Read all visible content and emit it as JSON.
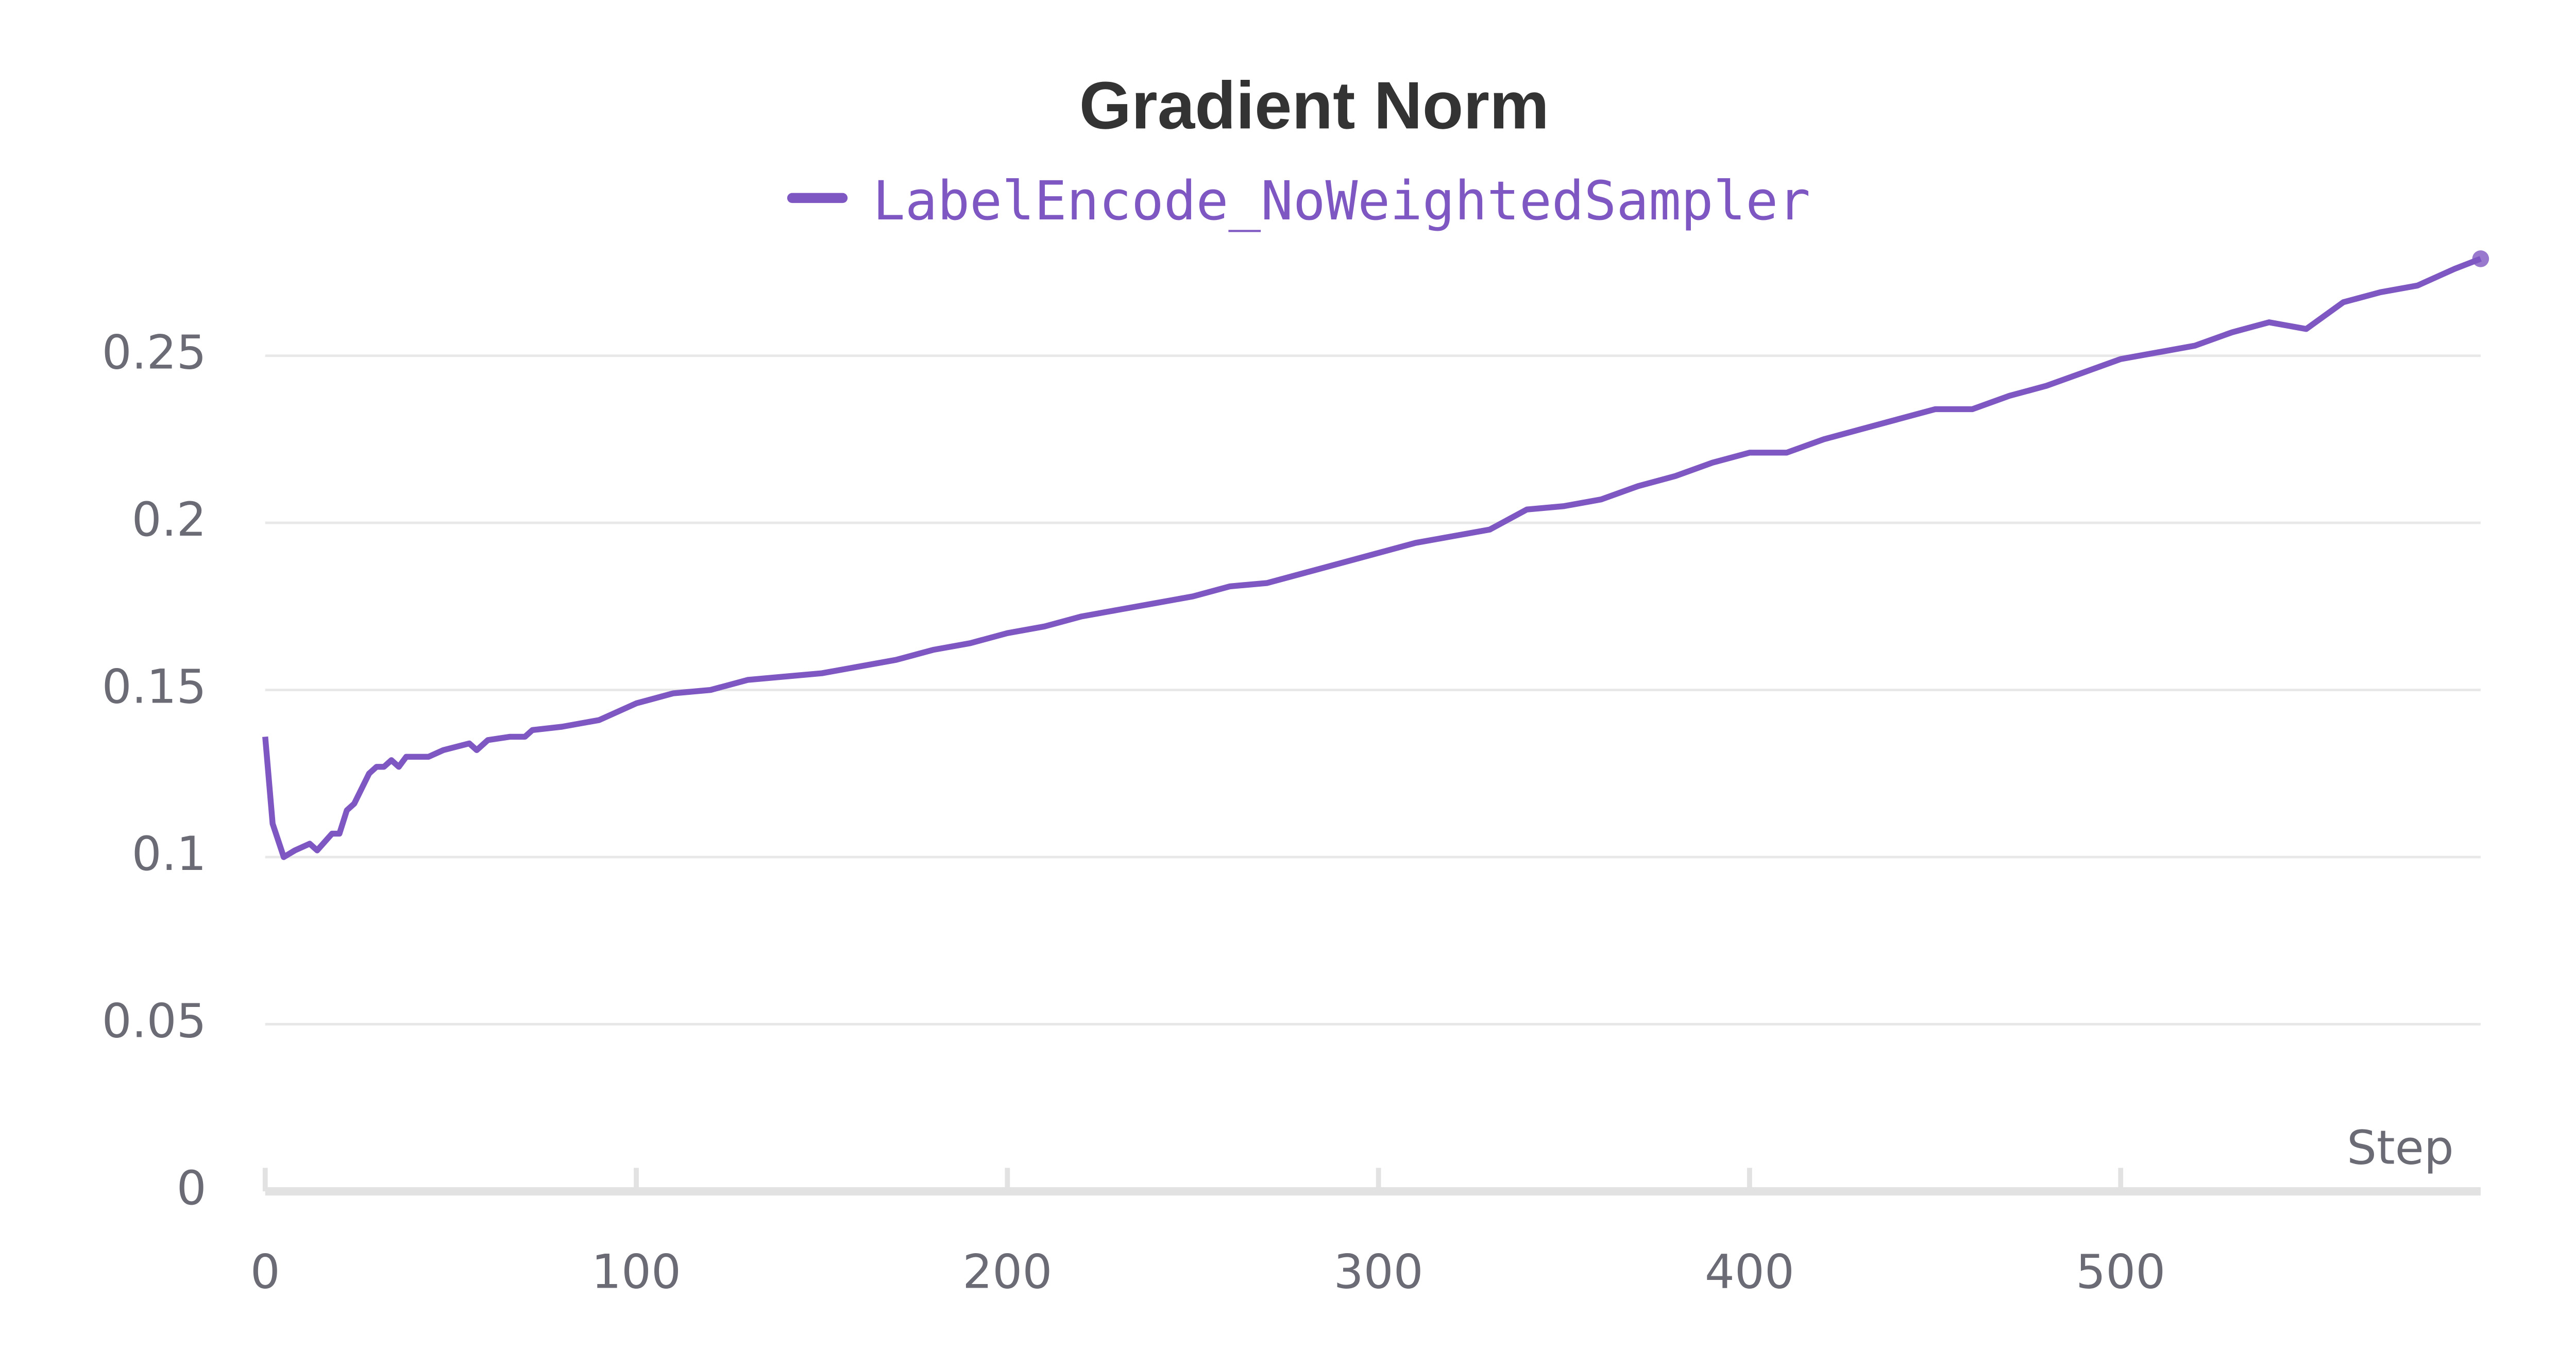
{
  "chart_data": {
    "type": "line",
    "title": "Gradient Norm",
    "xlabel": "Step",
    "x": [
      0,
      2,
      5,
      8,
      12,
      14,
      18,
      20,
      22,
      24,
      28,
      30,
      32,
      34,
      36,
      38,
      44,
      48,
      55,
      57,
      60,
      66,
      70,
      72,
      80,
      90,
      100,
      110,
      120,
      130,
      140,
      150,
      160,
      170,
      180,
      190,
      200,
      210,
      220,
      230,
      240,
      250,
      260,
      270,
      280,
      290,
      300,
      310,
      320,
      330,
      340,
      350,
      360,
      370,
      380,
      390,
      400,
      410,
      420,
      430,
      440,
      450,
      460,
      470,
      480,
      490,
      500,
      510,
      520,
      530,
      540,
      550,
      560,
      570,
      580,
      590,
      597
    ],
    "series": [
      {
        "name": "LabelEncode_NoWeightedSampler",
        "color": "#7e57c2",
        "values": [
          0.136,
          0.11,
          0.1,
          0.102,
          0.104,
          0.102,
          0.107,
          0.107,
          0.114,
          0.116,
          0.125,
          0.127,
          0.127,
          0.129,
          0.127,
          0.13,
          0.13,
          0.132,
          0.134,
          0.132,
          0.135,
          0.136,
          0.136,
          0.138,
          0.139,
          0.141,
          0.146,
          0.149,
          0.15,
          0.153,
          0.154,
          0.155,
          0.157,
          0.159,
          0.162,
          0.164,
          0.167,
          0.169,
          0.172,
          0.174,
          0.176,
          0.178,
          0.181,
          0.182,
          0.185,
          0.188,
          0.191,
          0.194,
          0.196,
          0.198,
          0.204,
          0.205,
          0.207,
          0.211,
          0.214,
          0.218,
          0.221,
          0.221,
          0.225,
          0.228,
          0.231,
          0.234,
          0.234,
          0.238,
          0.241,
          0.245,
          0.249,
          0.251,
          0.253,
          0.257,
          0.26,
          0.258,
          0.266,
          0.269,
          0.271,
          0.276,
          0.279
        ]
      }
    ],
    "xlim": [
      0,
      597
    ],
    "xticks": [
      0,
      100,
      200,
      300,
      400,
      500
    ],
    "ylim": [
      0,
      0.285
    ],
    "yticks": [
      0,
      0.05,
      0.1,
      0.15,
      0.2,
      0.25
    ],
    "grid": true
  }
}
